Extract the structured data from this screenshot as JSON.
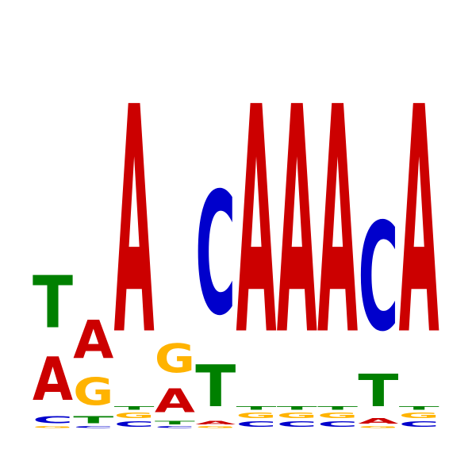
{
  "chart_data": {
    "type": "sequence-logo",
    "alphabet": [
      "A",
      "C",
      "G",
      "T"
    ],
    "colors": {
      "A": "#cc0000",
      "C": "#0000cc",
      "G": "#ffb300",
      "T": "#008000"
    },
    "y_max_bits": 2.0,
    "positions": [
      {
        "index": 1,
        "stack": [
          {
            "letter": "G",
            "bits": 0.01
          },
          {
            "letter": "C",
            "bits": 0.04
          },
          {
            "letter": "A",
            "bits": 0.24
          },
          {
            "letter": "T",
            "bits": 0.29
          }
        ]
      },
      {
        "index": 2,
        "stack": [
          {
            "letter": "C",
            "bits": 0.01
          },
          {
            "letter": "T",
            "bits": 0.04
          },
          {
            "letter": "G",
            "bits": 0.15
          },
          {
            "letter": "A",
            "bits": 0.21
          }
        ]
      },
      {
        "index": 3,
        "stack": [
          {
            "letter": "C",
            "bits": 0.03
          },
          {
            "letter": "G",
            "bits": 0.03
          },
          {
            "letter": "T",
            "bits": 0.02
          },
          {
            "letter": "A",
            "bits": 1.26
          }
        ]
      },
      {
        "index": 4,
        "stack": [
          {
            "letter": "C",
            "bits": 0.01
          },
          {
            "letter": "T",
            "bits": 0.02
          },
          {
            "letter": "A",
            "bits": 0.13
          },
          {
            "letter": "G",
            "bits": 0.16
          }
        ]
      },
      {
        "index": 5,
        "stack": [
          {
            "letter": "G",
            "bits": 0.01
          },
          {
            "letter": "A",
            "bits": 0.02
          },
          {
            "letter": "T",
            "bits": 0.23
          },
          {
            "letter": "C",
            "bits": 0.68
          }
        ]
      },
      {
        "index": 6,
        "stack": [
          {
            "letter": "C",
            "bits": 0.03
          },
          {
            "letter": "G",
            "bits": 0.03
          },
          {
            "letter": "T",
            "bits": 0.02
          },
          {
            "letter": "A",
            "bits": 1.26
          }
        ]
      },
      {
        "index": 7,
        "stack": [
          {
            "letter": "C",
            "bits": 0.03
          },
          {
            "letter": "G",
            "bits": 0.03
          },
          {
            "letter": "T",
            "bits": 0.02
          },
          {
            "letter": "A",
            "bits": 1.26
          }
        ]
      },
      {
        "index": 8,
        "stack": [
          {
            "letter": "C",
            "bits": 0.03
          },
          {
            "letter": "G",
            "bits": 0.03
          },
          {
            "letter": "T",
            "bits": 0.02
          },
          {
            "letter": "A",
            "bits": 1.26
          }
        ]
      },
      {
        "index": 9,
        "stack": [
          {
            "letter": "G",
            "bits": 0.01
          },
          {
            "letter": "A",
            "bits": 0.03
          },
          {
            "letter": "T",
            "bits": 0.18
          },
          {
            "letter": "C",
            "bits": 0.6
          }
        ]
      },
      {
        "index": 10,
        "stack": [
          {
            "letter": "C",
            "bits": 0.03
          },
          {
            "letter": "G",
            "bits": 0.03
          },
          {
            "letter": "T",
            "bits": 0.02
          },
          {
            "letter": "A",
            "bits": 1.26
          }
        ]
      }
    ]
  }
}
